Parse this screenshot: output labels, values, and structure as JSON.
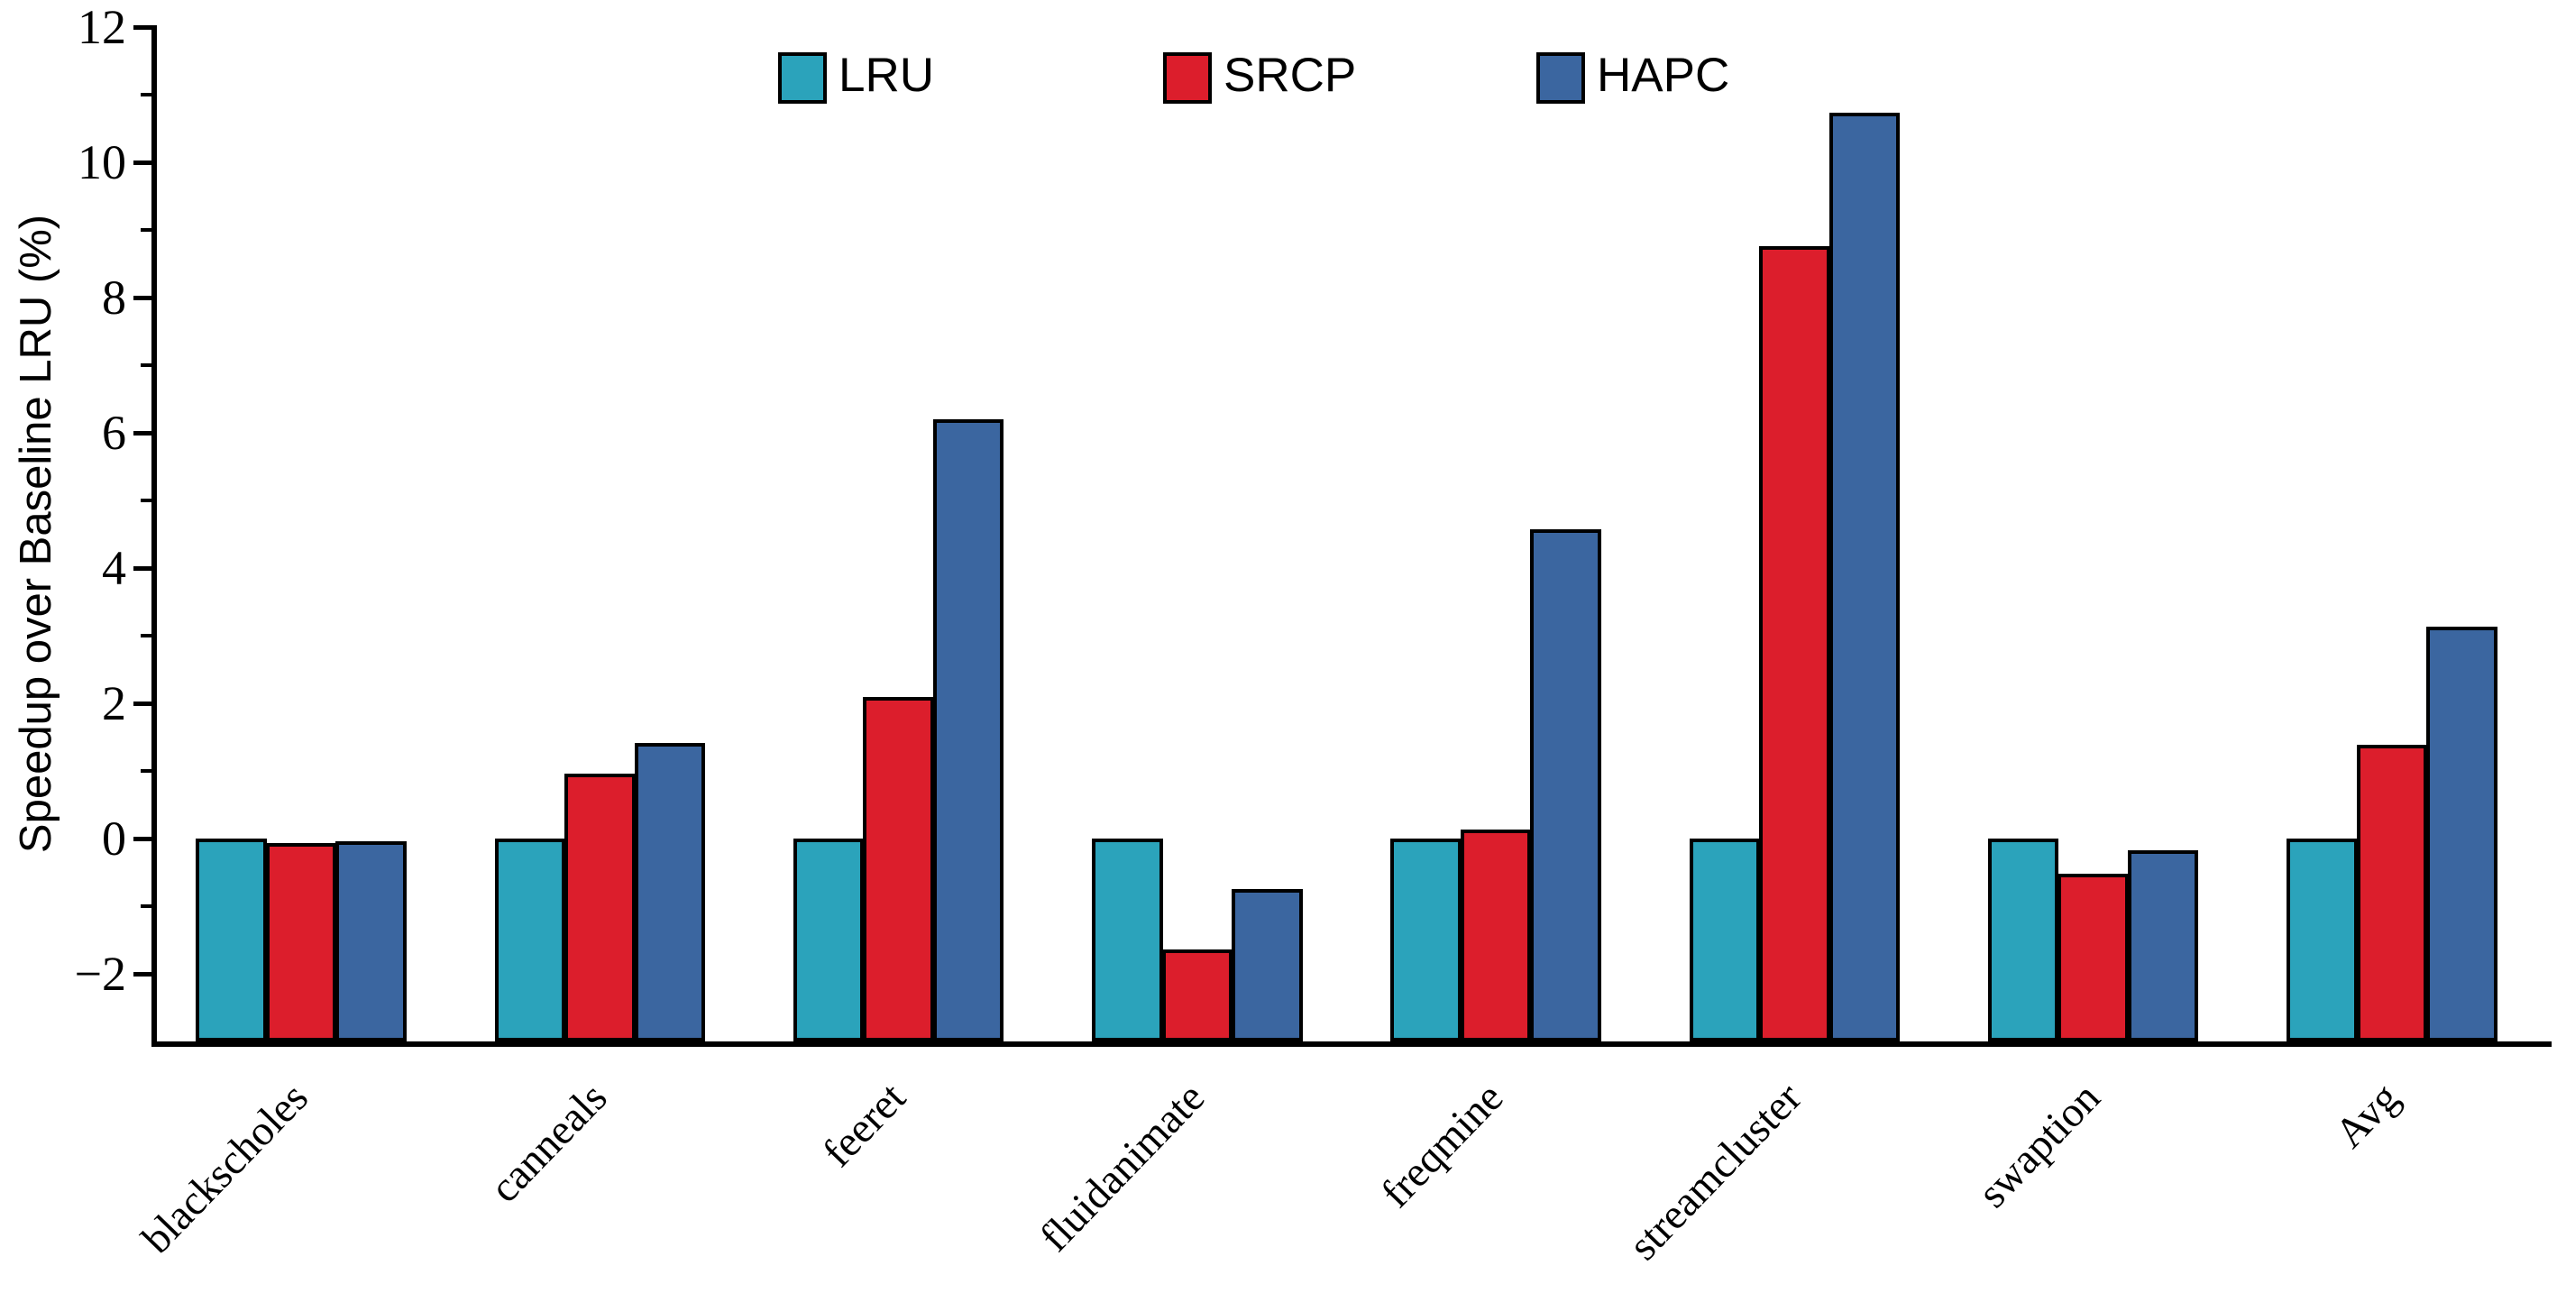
{
  "chart_data": {
    "type": "bar",
    "title": "",
    "xlabel": "",
    "ylabel": "Speedup over Baseline LRU (%)",
    "categories": [
      "blackscholes",
      "canneals",
      "feeret",
      "fluidanimate",
      "freqmine",
      "streamcluster",
      "swaption",
      "Avg"
    ],
    "series": [
      {
        "name": "LRU",
        "color": "#2BA3BB",
        "values": [
          0,
          0,
          0,
          0,
          0,
          0,
          0,
          0
        ]
      },
      {
        "name": "SRCP",
        "color": "#DC1E2C",
        "values": [
          -0.06,
          0.96,
          2.1,
          -1.64,
          0.13,
          8.76,
          -0.52,
          1.39
        ]
      },
      {
        "name": "HAPC",
        "color": "#3B66A0",
        "values": [
          -0.04,
          1.41,
          6.2,
          -0.74,
          4.58,
          10.74,
          -0.17,
          3.14
        ]
      }
    ],
    "ylim": [
      -3,
      12
    ],
    "yticks_major": [
      -2,
      0,
      2,
      4,
      6,
      8,
      10,
      12
    ],
    "yticks_minor": [
      -1,
      1,
      3,
      5,
      7,
      9,
      11
    ],
    "bar_baseline": -3,
    "grid": false,
    "legend_position": "top-center"
  }
}
